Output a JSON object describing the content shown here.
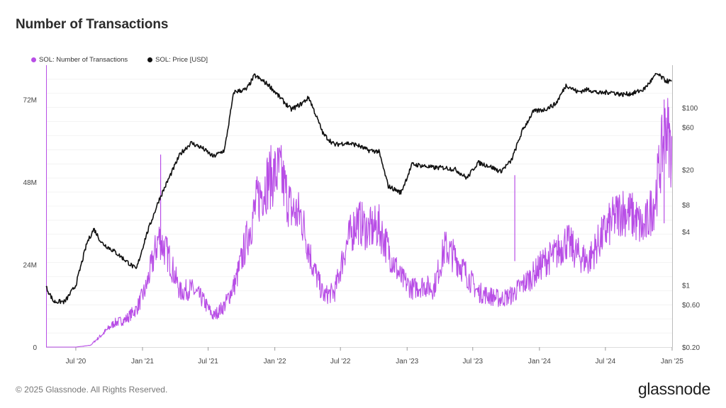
{
  "title": "Number of Transactions",
  "footer": {
    "copyright": "© 2025 Glassnode. All Rights Reserved.",
    "logo": "glassnode"
  },
  "colors": {
    "transactions": "#b84ee6",
    "price": "#111111",
    "grid": "#ececec"
  },
  "chart_data": {
    "type": "line",
    "title": "Number of Transactions",
    "legend": {
      "placement": "top-left",
      "entries": [
        {
          "label": "SOL: Number of Transactions",
          "color": "#b84ee6"
        },
        {
          "label": "SOL: Price [USD]",
          "color": "#111111"
        }
      ]
    },
    "x_axis": {
      "ticks": [
        "Jul '20",
        "Jan '21",
        "Jul '21",
        "Jan '22",
        "Jul '22",
        "Jan '23",
        "Jul '23",
        "Jan '24",
        "Jul '24",
        "Jan '25"
      ],
      "range": [
        "2020-04-10",
        "2025-01-01"
      ]
    },
    "y_left": {
      "ticks": [
        "0",
        "24M",
        "48M",
        "72M"
      ],
      "range": [
        0,
        82000000
      ],
      "scale": "linear"
    },
    "y_right": {
      "ticks": [
        "$0.20",
        "$0.60",
        "$1",
        "$4",
        "$8",
        "$20",
        "$60",
        "$100"
      ],
      "range": [
        0.2,
        300
      ],
      "scale": "log"
    },
    "grid": true,
    "series": [
      {
        "name": "SOL: Number of Transactions",
        "axis": "left",
        "x": [
          "2020-04-10",
          "2020-06-01",
          "2020-07-01",
          "2020-08-10",
          "2020-09-15",
          "2020-10-15",
          "2020-11-15",
          "2020-12-15",
          "2021-01-10",
          "2021-02-15",
          "2021-03-15",
          "2021-04-15",
          "2021-05-15",
          "2021-06-15",
          "2021-07-15",
          "2021-08-15",
          "2021-09-15",
          "2021-10-15",
          "2021-11-15",
          "2021-12-15",
          "2022-01-15",
          "2022-02-15",
          "2022-03-15",
          "2022-04-15",
          "2022-05-15",
          "2022-06-15",
          "2022-07-15",
          "2022-08-15",
          "2022-09-15",
          "2022-10-15",
          "2022-11-15",
          "2022-12-15",
          "2023-01-15",
          "2023-02-15",
          "2023-03-15",
          "2023-04-15",
          "2023-05-15",
          "2023-06-15",
          "2023-07-15",
          "2023-08-15",
          "2023-09-15",
          "2023-10-15",
          "2023-11-15",
          "2023-12-15",
          "2024-01-15",
          "2024-02-15",
          "2024-03-15",
          "2024-04-15",
          "2024-05-15",
          "2024-06-15",
          "2024-07-15",
          "2024-08-15",
          "2024-09-15",
          "2024-10-15",
          "2024-11-15",
          "2024-12-15",
          "2024-12-31"
        ],
        "values": [
          0,
          0,
          0,
          500000,
          4000000,
          7000000,
          8000000,
          11000000,
          17000000,
          32000000,
          26000000,
          16000000,
          17000000,
          14000000,
          9000000,
          12000000,
          19000000,
          31000000,
          43000000,
          49000000,
          51000000,
          40000000,
          38000000,
          24000000,
          15000000,
          16000000,
          29000000,
          37000000,
          34000000,
          35000000,
          27000000,
          20000000,
          17000000,
          18000000,
          17000000,
          29000000,
          26000000,
          21000000,
          16000000,
          15000000,
          14000000,
          15000000,
          18000000,
          21000000,
          25000000,
          27000000,
          31000000,
          27000000,
          25000000,
          31000000,
          36000000,
          40000000,
          38000000,
          34000000,
          43000000,
          65000000,
          56000000
        ]
      },
      {
        "name": "SOL: Price [USD]",
        "axis": "right",
        "x": [
          "2020-04-10",
          "2020-05-01",
          "2020-06-01",
          "2020-07-01",
          "2020-08-01",
          "2020-08-20",
          "2020-09-10",
          "2020-10-15",
          "2020-11-15",
          "2020-12-15",
          "2021-01-10",
          "2021-02-15",
          "2021-03-15",
          "2021-04-15",
          "2021-05-15",
          "2021-06-15",
          "2021-07-15",
          "2021-08-15",
          "2021-09-10",
          "2021-10-15",
          "2021-11-06",
          "2021-12-15",
          "2022-01-15",
          "2022-02-15",
          "2022-03-15",
          "2022-04-05",
          "2022-05-15",
          "2022-06-15",
          "2022-07-15",
          "2022-08-15",
          "2022-09-15",
          "2022-10-15",
          "2022-11-10",
          "2022-12-15",
          "2023-01-15",
          "2023-02-15",
          "2023-03-15",
          "2023-04-15",
          "2023-05-15",
          "2023-06-15",
          "2023-07-15",
          "2023-08-15",
          "2023-09-15",
          "2023-10-15",
          "2023-11-15",
          "2023-12-15",
          "2024-01-15",
          "2024-02-15",
          "2024-03-15",
          "2024-04-15",
          "2024-05-15",
          "2024-06-15",
          "2024-07-15",
          "2024-08-15",
          "2024-09-15",
          "2024-10-15",
          "2024-11-20",
          "2024-12-15",
          "2024-12-31"
        ],
        "values": [
          0.95,
          0.65,
          0.65,
          1.0,
          3.0,
          4.3,
          3.0,
          2.4,
          1.9,
          1.5,
          3.5,
          9.0,
          16,
          30,
          40,
          35,
          28,
          33,
          150,
          160,
          230,
          180,
          130,
          95,
          110,
          130,
          50,
          38,
          40,
          38,
          33,
          32,
          13,
          11,
          23,
          22,
          21,
          21,
          20,
          16,
          24,
          22,
          19,
          25,
          55,
          90,
          95,
          110,
          180,
          150,
          160,
          145,
          150,
          140,
          145,
          160,
          240,
          200,
          195
        ]
      }
    ]
  }
}
